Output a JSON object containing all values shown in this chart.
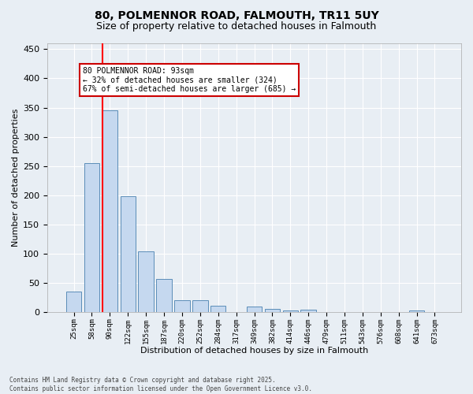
{
  "title1": "80, POLMENNOR ROAD, FALMOUTH, TR11 5UY",
  "title2": "Size of property relative to detached houses in Falmouth",
  "xlabel": "Distribution of detached houses by size in Falmouth",
  "ylabel": "Number of detached properties",
  "bar_labels": [
    "25sqm",
    "58sqm",
    "90sqm",
    "122sqm",
    "155sqm",
    "187sqm",
    "220sqm",
    "252sqm",
    "284sqm",
    "317sqm",
    "349sqm",
    "382sqm",
    "414sqm",
    "446sqm",
    "479sqm",
    "511sqm",
    "543sqm",
    "576sqm",
    "608sqm",
    "641sqm",
    "673sqm"
  ],
  "bar_values": [
    35,
    255,
    345,
    198,
    104,
    56,
    20,
    20,
    11,
    0,
    9,
    5,
    2,
    4,
    0,
    0,
    0,
    0,
    0,
    3,
    0
  ],
  "bar_color": "#c5d8ef",
  "bar_edge_color": "#5b8db8",
  "red_line_index": 2,
  "annotation_title": "80 POLMENNOR ROAD: 93sqm",
  "annotation_line1": "← 32% of detached houses are smaller (324)",
  "annotation_line2": "67% of semi-detached houses are larger (685) →",
  "annotation_box_edge": "#cc0000",
  "footer1": "Contains HM Land Registry data © Crown copyright and database right 2025.",
  "footer2": "Contains public sector information licensed under the Open Government Licence v3.0.",
  "ylim": [
    0,
    460
  ],
  "yticks": [
    0,
    50,
    100,
    150,
    200,
    250,
    300,
    350,
    400,
    450
  ],
  "background_color": "#e8eef4",
  "plot_background": "#e8eef4",
  "grid_color": "#ffffff",
  "title1_fontsize": 10,
  "title2_fontsize": 9
}
